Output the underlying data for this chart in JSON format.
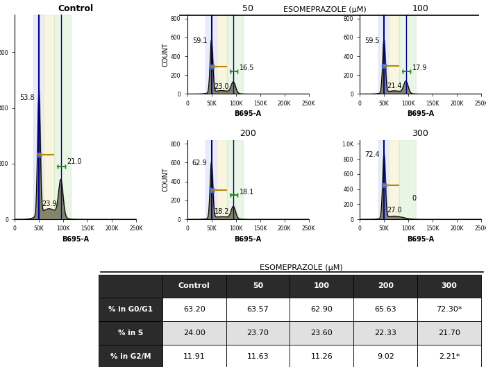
{
  "title_esomeprazole": "ESOMEPRAZOLE (μM)",
  "xlabel": "B695-A",
  "ylabel": "COUNT",
  "panels": {
    "Control": {
      "g0g1_pct": 53.8,
      "s_pct": 23.9,
      "g2m_pct": 21.0,
      "ymax": 700,
      "ytick_vals": [
        0,
        200,
        400,
        600
      ],
      "ytick_labels": [
        "0",
        "200",
        "400",
        "600"
      ]
    },
    "50": {
      "g0g1_pct": 59.1,
      "s_pct": 23.0,
      "g2m_pct": 16.5,
      "ymax": 800,
      "ytick_vals": [
        0,
        200,
        400,
        600,
        800
      ],
      "ytick_labels": [
        "0",
        "200",
        "400",
        "600",
        "800"
      ]
    },
    "100": {
      "g0g1_pct": 59.5,
      "s_pct": 21.4,
      "g2m_pct": 17.9,
      "ymax": 800,
      "ytick_vals": [
        0,
        200,
        400,
        600,
        800
      ],
      "ytick_labels": [
        "0",
        "200",
        "400",
        "600",
        "800"
      ]
    },
    "200": {
      "g0g1_pct": 62.9,
      "s_pct": 18.2,
      "g2m_pct": 18.1,
      "ymax": 800,
      "ytick_vals": [
        0,
        200,
        400,
        600,
        800
      ],
      "ytick_labels": [
        "0",
        "200",
        "400",
        "600",
        "800"
      ]
    },
    "300": {
      "g0g1_pct": 72.4,
      "s_pct": 27.0,
      "g2m_pct": 0,
      "ymax": 1000,
      "ytick_vals": [
        0,
        200,
        400,
        600,
        800,
        1000
      ],
      "ytick_labels": [
        "0",
        "200",
        "400",
        "600",
        "800",
        "1.0K"
      ]
    }
  },
  "table": {
    "header_label": "ESOMEPRAZOLE (μM)",
    "columns": [
      "Control",
      "50",
      "100",
      "200",
      "300"
    ],
    "rows": [
      {
        "label": "% in G0/G1",
        "values": [
          "63.20",
          "63.57",
          "62.90",
          "65.63",
          "72.30*"
        ]
      },
      {
        "label": "% in S",
        "values": [
          "24.00",
          "23.70",
          "23.60",
          "22.33",
          "21.70"
        ]
      },
      {
        "label": "% in G2/M",
        "values": [
          "11.91",
          "11.63",
          "11.26",
          "9.02",
          "2.21*"
        ]
      }
    ],
    "header_bg": "#2b2b2b",
    "row_label_bg": "#2b2b2b",
    "alt_row_bg": "#d8d8d8",
    "white_row_bg": "#ffffff"
  },
  "colors": {
    "g0g1_region": "#c8d0f0",
    "s_region": "#f5f0d0",
    "g2m_region": "#c8e8c0",
    "peak_line": "#00008b",
    "g1_marker": "#4466cc",
    "bracket_gold": "#b8860b",
    "bracket_green": "#228822",
    "fill_color": "#5a5a40"
  }
}
